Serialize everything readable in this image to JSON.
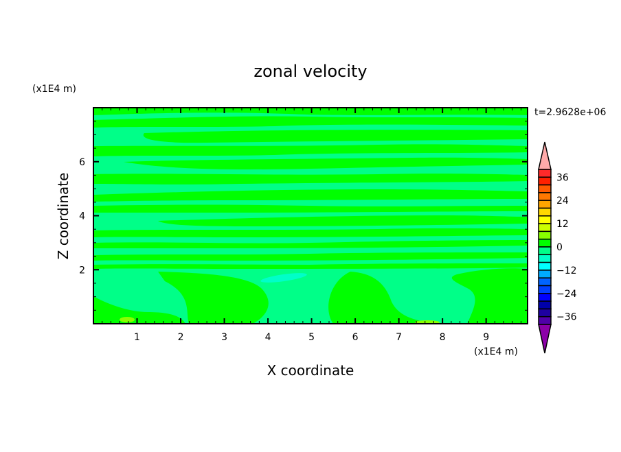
{
  "chart_data": {
    "type": "heatmap",
    "subtype": "filled-contour",
    "title": "zonal velocity",
    "xlabel": "X coordinate",
    "ylabel": "Z coordinate",
    "x_scale_label": "(x1E4 m)",
    "y_scale_label": "(x1E4 m)",
    "time_label": "t=2.9628e+06",
    "xlim": [
      0,
      9.95
    ],
    "ylim": [
      0,
      8.0
    ],
    "x_ticks": [
      1,
      2,
      3,
      4,
      5,
      6,
      7,
      8,
      9
    ],
    "y_ticks": [
      2,
      4,
      6
    ],
    "grid": false,
    "colorbar": {
      "placement": "right",
      "levels": [
        36,
        32,
        28,
        24,
        20,
        16,
        12,
        8,
        4,
        0,
        -4,
        -8,
        -12,
        -16,
        -20,
        -24,
        -28,
        -32,
        -36
      ],
      "tick_labels": [
        "36",
        "24",
        "12",
        "0",
        "−12",
        "−24",
        "−36"
      ],
      "tick_values": [
        36,
        24,
        12,
        0,
        -12,
        -24,
        -36
      ],
      "over_color": "#ffaaaa",
      "under_color": "#8c00a8",
      "colors": [
        "#ff2a2a",
        "#ff2000",
        "#ff5a00",
        "#ff7800",
        "#ffa500",
        "#ffd700",
        "#ffff00",
        "#ccff00",
        "#88ff00",
        "#00ff00",
        "#00ff88",
        "#00ffc8",
        "#00ffff",
        "#00aaff",
        "#0064ff",
        "#0040ff",
        "#0000ff",
        "#0000aa",
        "#1e00a0",
        "#5000a8"
      ]
    },
    "field_summary": {
      "dominant_range": [
        -4,
        4
      ],
      "colors_present": [
        "#00ff88",
        "#00ff00",
        "#00ffc8",
        "#88ff00"
      ]
    }
  }
}
